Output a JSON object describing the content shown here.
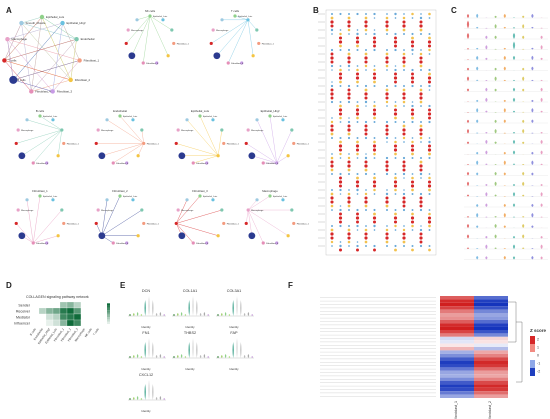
{
  "panels": {
    "a": "A",
    "b": "B",
    "c": "C",
    "d": "D",
    "e": "E",
    "f": "F"
  },
  "network": {
    "nodes": [
      "Epithelial_Luts",
      "Epithelial_Hbgf",
      "Endothelial",
      "Fibroblast_1",
      "Fibroblast_2",
      "Fibroblast_3",
      "Fibroblast_4",
      "B cells",
      "T cells",
      "Macrophage",
      "Smooth_Muscle"
    ],
    "small_titles": [
      "NK cells",
      "T cells",
      "B cells",
      "Endothelial",
      "Epithelial_Luts",
      "Epithelial_Hbgf",
      "Fibroblast_1",
      "Fibroblast_2",
      "Fibroblast_3",
      "Macrophage"
    ]
  },
  "panel_d": {
    "title": "COLLAGEN signaling pathway network",
    "rows": [
      "Sender",
      "Receiver",
      "Mediator",
      "Influencer"
    ],
    "cols": [
      "B cells",
      "Endothelial",
      "Epithelial_Hbgf",
      "Epithelial_Luts",
      "Fibroblast_1",
      "Fibroblast_2",
      "Fibroblast_3",
      "Macrophage",
      "NK cells",
      "T cells"
    ],
    "values": [
      [
        0,
        0,
        0,
        0,
        0.4,
        0.5,
        0.3,
        0,
        0,
        0
      ],
      [
        0,
        0.3,
        0.5,
        0.6,
        0.9,
        1.0,
        0.7,
        0,
        0,
        0
      ],
      [
        0,
        0,
        0.2,
        0.3,
        0.8,
        0.9,
        1.0,
        0,
        0,
        0
      ],
      [
        0,
        0,
        0.1,
        0.2,
        0.5,
        1.0,
        0.8,
        0,
        0,
        0
      ]
    ]
  },
  "panel_e": {
    "genes": [
      "DCN",
      "COL1A1",
      "COL3A1",
      "FN1",
      "THBS2",
      "FAP",
      "CXCL12"
    ],
    "xlabel": "Identity"
  },
  "panel_f": {
    "legend_title": "Z score",
    "legend_ticks": [
      "2",
      "1",
      "0",
      "-1",
      "-2"
    ],
    "columns": [
      "Fibroblast_1",
      "Fibroblast_2"
    ]
  },
  "colors": {
    "high": "#d62728",
    "low": "#1f3fbf",
    "mid": "#ffffff",
    "heat": "#0f6b3a"
  }
}
